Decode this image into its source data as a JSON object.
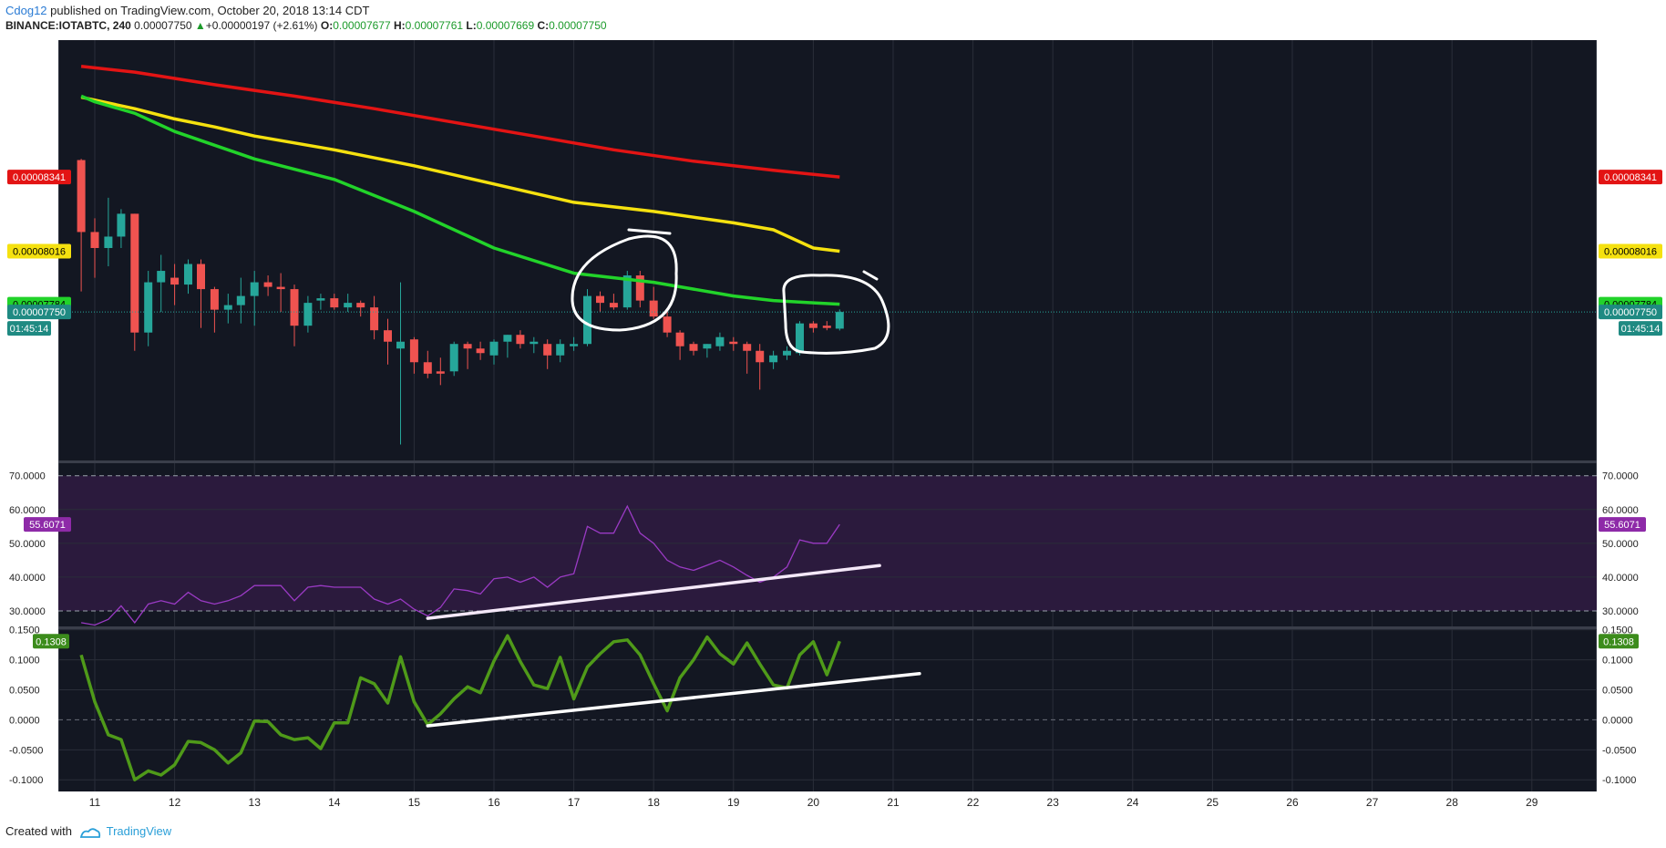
{
  "header": {
    "author": "Cdog12",
    "published_text": " published on TradingView.com, October 20, 2018 13:14 CDT",
    "symbol": "BINANCE:IOTABTC, 240",
    "last": "0.00007750",
    "change": "+0.00000197 (+2.61%)",
    "o_label": "O:",
    "o": "0.00007677",
    "h_label": "H:",
    "h": "0.00007761",
    "l_label": "L:",
    "l": "0.00007669",
    "c_label": "C:",
    "c": "0.00007750"
  },
  "footer": {
    "created_with": "Created with",
    "brand": "TradingView"
  },
  "colors": {
    "background": "#131722",
    "grid": "#2a2e39",
    "up": "#26a69a",
    "down": "#ef5350",
    "ma_red": "#e31414",
    "ma_yellow": "#f5e10f",
    "ma_green": "#22d32a",
    "rsi_line": "#9a3ac4",
    "rsi_band": "#2b1a3d",
    "osc_line": "#4f9a19",
    "badge_green": "#3c8c1c",
    "badge_purple": "#8e2aa8",
    "badge_teal": "#1f8a82"
  },
  "chart_data": [
    {
      "type": "candlestick",
      "title": "BINANCE:IOTABTC, 240",
      "x_ticks": [
        "11",
        "12",
        "13",
        "14",
        "15",
        "16",
        "17",
        "18",
        "19",
        "20",
        "21",
        "22",
        "23",
        "24",
        "25",
        "26",
        "27",
        "28",
        "29"
      ],
      "ylim": [
        7.1e-05,
        8.94e-05
      ],
      "y_ticks": [
        "0.00007200",
        "0.00007400",
        "0.00007600",
        "0.00008200",
        "0.00008400",
        "0.00008600",
        "0.00008800"
      ],
      "candles": [
        {
          "t": 10.83,
          "o": 84.15,
          "h": 84.2,
          "l": 78.4,
          "c": 81.0
        },
        {
          "t": 11.0,
          "o": 81.0,
          "h": 81.6,
          "l": 79.0,
          "c": 80.3
        },
        {
          "t": 11.17,
          "o": 80.3,
          "h": 82.5,
          "l": 79.5,
          "c": 80.8
        },
        {
          "t": 11.33,
          "o": 80.8,
          "h": 82.0,
          "l": 80.3,
          "c": 81.8
        },
        {
          "t": 11.5,
          "o": 81.8,
          "h": 81.8,
          "l": 75.8,
          "c": 76.6
        },
        {
          "t": 11.67,
          "o": 76.6,
          "h": 79.3,
          "l": 76.0,
          "c": 78.8
        },
        {
          "t": 11.83,
          "o": 78.8,
          "h": 80.0,
          "l": 77.5,
          "c": 79.3
        },
        {
          "t": 12.0,
          "o": 79.0,
          "h": 79.6,
          "l": 77.8,
          "c": 78.7
        },
        {
          "t": 12.17,
          "o": 78.7,
          "h": 79.8,
          "l": 78.3,
          "c": 79.6
        },
        {
          "t": 12.33,
          "o": 79.6,
          "h": 79.8,
          "l": 76.8,
          "c": 78.5
        },
        {
          "t": 12.5,
          "o": 78.5,
          "h": 78.6,
          "l": 76.6,
          "c": 77.6
        },
        {
          "t": 12.67,
          "o": 77.6,
          "h": 78.3,
          "l": 77.0,
          "c": 77.8
        },
        {
          "t": 12.83,
          "o": 77.8,
          "h": 79.0,
          "l": 77.0,
          "c": 78.2
        },
        {
          "t": 13.0,
          "o": 78.2,
          "h": 79.3,
          "l": 76.9,
          "c": 78.8
        },
        {
          "t": 13.17,
          "o": 78.8,
          "h": 79.1,
          "l": 78.2,
          "c": 78.6
        },
        {
          "t": 13.33,
          "o": 78.6,
          "h": 79.2,
          "l": 77.5,
          "c": 78.5
        },
        {
          "t": 13.5,
          "o": 78.5,
          "h": 78.7,
          "l": 76.0,
          "c": 76.9
        },
        {
          "t": 13.67,
          "o": 76.9,
          "h": 78.2,
          "l": 76.6,
          "c": 77.9
        },
        {
          "t": 13.83,
          "o": 78.0,
          "h": 78.3,
          "l": 77.6,
          "c": 78.1
        },
        {
          "t": 14.0,
          "o": 78.1,
          "h": 78.3,
          "l": 77.6,
          "c": 77.7
        },
        {
          "t": 14.17,
          "o": 77.7,
          "h": 78.3,
          "l": 77.5,
          "c": 77.9
        },
        {
          "t": 14.33,
          "o": 77.9,
          "h": 78.0,
          "l": 77.3,
          "c": 77.7
        },
        {
          "t": 14.5,
          "o": 77.7,
          "h": 78.2,
          "l": 76.3,
          "c": 76.7
        },
        {
          "t": 14.67,
          "o": 76.7,
          "h": 77.2,
          "l": 75.2,
          "c": 76.2
        },
        {
          "t": 14.83,
          "o": 75.9,
          "h": 78.8,
          "l": 71.7,
          "c": 76.2
        },
        {
          "t": 15.0,
          "o": 76.3,
          "h": 76.4,
          "l": 74.8,
          "c": 75.3
        },
        {
          "t": 15.17,
          "o": 75.3,
          "h": 75.8,
          "l": 74.6,
          "c": 74.8
        },
        {
          "t": 15.33,
          "o": 74.9,
          "h": 75.5,
          "l": 74.3,
          "c": 74.8
        },
        {
          "t": 15.5,
          "o": 74.9,
          "h": 76.2,
          "l": 74.7,
          "c": 76.1
        },
        {
          "t": 15.67,
          "o": 76.1,
          "h": 76.2,
          "l": 75.0,
          "c": 75.9
        },
        {
          "t": 15.83,
          "o": 75.9,
          "h": 76.2,
          "l": 75.4,
          "c": 75.7
        },
        {
          "t": 16.0,
          "o": 75.6,
          "h": 76.3,
          "l": 75.2,
          "c": 76.2
        },
        {
          "t": 16.17,
          "o": 76.2,
          "h": 76.5,
          "l": 75.5,
          "c": 76.5
        },
        {
          "t": 16.33,
          "o": 76.5,
          "h": 76.7,
          "l": 75.9,
          "c": 76.1
        },
        {
          "t": 16.5,
          "o": 76.1,
          "h": 76.4,
          "l": 75.7,
          "c": 76.2
        },
        {
          "t": 16.67,
          "o": 76.1,
          "h": 76.3,
          "l": 75.0,
          "c": 75.6
        },
        {
          "t": 16.83,
          "o": 75.6,
          "h": 76.3,
          "l": 75.3,
          "c": 76.1
        },
        {
          "t": 17.0,
          "o": 76.0,
          "h": 76.4,
          "l": 75.8,
          "c": 76.1
        },
        {
          "t": 17.17,
          "o": 76.1,
          "h": 78.5,
          "l": 76.0,
          "c": 78.2
        },
        {
          "t": 17.33,
          "o": 78.2,
          "h": 78.4,
          "l": 77.5,
          "c": 77.9
        },
        {
          "t": 17.5,
          "o": 77.9,
          "h": 78.3,
          "l": 77.6,
          "c": 77.7
        },
        {
          "t": 17.67,
          "o": 77.7,
          "h": 79.3,
          "l": 77.6,
          "c": 79.1
        },
        {
          "t": 17.83,
          "o": 79.1,
          "h": 79.3,
          "l": 77.7,
          "c": 78.0
        },
        {
          "t": 18.0,
          "o": 78.0,
          "h": 78.6,
          "l": 77.2,
          "c": 77.3
        },
        {
          "t": 18.17,
          "o": 77.3,
          "h": 77.6,
          "l": 76.4,
          "c": 76.6
        },
        {
          "t": 18.33,
          "o": 76.6,
          "h": 76.7,
          "l": 75.4,
          "c": 76.0
        },
        {
          "t": 18.5,
          "o": 76.1,
          "h": 76.2,
          "l": 75.6,
          "c": 75.8
        },
        {
          "t": 18.67,
          "o": 75.9,
          "h": 76.1,
          "l": 75.5,
          "c": 76.1
        },
        {
          "t": 18.83,
          "o": 76.0,
          "h": 76.6,
          "l": 75.8,
          "c": 76.4
        },
        {
          "t": 19.0,
          "o": 76.2,
          "h": 76.4,
          "l": 75.8,
          "c": 76.1
        },
        {
          "t": 19.17,
          "o": 76.1,
          "h": 76.2,
          "l": 74.8,
          "c": 75.8
        },
        {
          "t": 19.33,
          "o": 75.8,
          "h": 76.1,
          "l": 74.1,
          "c": 75.3
        },
        {
          "t": 19.5,
          "o": 75.3,
          "h": 75.8,
          "l": 75.0,
          "c": 75.6
        },
        {
          "t": 19.67,
          "o": 75.6,
          "h": 76.0,
          "l": 75.4,
          "c": 75.8
        },
        {
          "t": 19.83,
          "o": 75.7,
          "h": 77.1,
          "l": 75.6,
          "c": 77.0
        },
        {
          "t": 20.0,
          "o": 77.0,
          "h": 77.1,
          "l": 76.6,
          "c": 76.8
        },
        {
          "t": 20.17,
          "o": 76.9,
          "h": 77.1,
          "l": 76.7,
          "c": 76.8
        },
        {
          "t": 20.33,
          "o": 76.77,
          "h": 77.61,
          "l": 76.69,
          "c": 77.5
        }
      ],
      "moving_averages": [
        {
          "color": "red",
          "points": [
            [
              10.83,
              88.25
            ],
            [
              11.5,
              88.0
            ],
            [
              12.5,
              87.45
            ],
            [
              13.5,
              86.95
            ],
            [
              14.5,
              86.4
            ],
            [
              15.5,
              85.8
            ],
            [
              16.5,
              85.2
            ],
            [
              17.5,
              84.6
            ],
            [
              18.5,
              84.1
            ],
            [
              19.5,
              83.7
            ],
            [
              20.33,
              83.41
            ]
          ]
        },
        {
          "color": "yellow",
          "points": [
            [
              10.83,
              86.9
            ],
            [
              11.5,
              86.4
            ],
            [
              12.0,
              85.95
            ],
            [
              12.5,
              85.6
            ],
            [
              13.0,
              85.2
            ],
            [
              14.0,
              84.6
            ],
            [
              15.0,
              83.9
            ],
            [
              16.0,
              83.1
            ],
            [
              17.0,
              82.3
            ],
            [
              17.5,
              82.1
            ],
            [
              18.0,
              81.9
            ],
            [
              18.5,
              81.65
            ],
            [
              19.0,
              81.4
            ],
            [
              19.5,
              81.1
            ],
            [
              20.0,
              80.3
            ],
            [
              20.33,
              80.16
            ]
          ]
        },
        {
          "color": "green",
          "points": [
            [
              10.83,
              86.95
            ],
            [
              11.0,
              86.7
            ],
            [
              11.5,
              86.2
            ],
            [
              12.0,
              85.4
            ],
            [
              13.0,
              84.2
            ],
            [
              14.0,
              83.3
            ],
            [
              15.0,
              81.9
            ],
            [
              16.0,
              80.3
            ],
            [
              17.0,
              79.2
            ],
            [
              17.5,
              79.0
            ],
            [
              18.0,
              78.8
            ],
            [
              19.0,
              78.2
            ],
            [
              19.5,
              78.0
            ],
            [
              20.0,
              77.9
            ],
            [
              20.33,
              77.84
            ]
          ]
        }
      ],
      "price_badges": {
        "ma_red": "0.00008341",
        "ma_yellow": "0.00008016",
        "ma_green": "0.00007784",
        "last": "0.00007750",
        "countdown": "01:45:14"
      }
    },
    {
      "type": "line",
      "title": "RSI",
      "ylim": [
        25.4,
        73.7
      ],
      "y_ticks": [
        "30.0000",
        "40.0000",
        "50.0000",
        "60.0000",
        "70.0000"
      ],
      "band": [
        30,
        70
      ],
      "x": [
        10.83,
        11.0,
        11.17,
        11.33,
        11.5,
        11.67,
        11.83,
        12.0,
        12.17,
        12.33,
        12.5,
        12.67,
        12.83,
        13.0,
        13.17,
        13.33,
        13.5,
        13.67,
        13.83,
        14.0,
        14.17,
        14.33,
        14.5,
        14.67,
        14.83,
        15.0,
        15.17,
        15.33,
        15.5,
        15.67,
        15.83,
        16.0,
        16.17,
        16.33,
        16.5,
        16.67,
        16.83,
        17.0,
        17.17,
        17.33,
        17.5,
        17.67,
        17.83,
        18.0,
        18.17,
        18.33,
        18.5,
        18.67,
        18.83,
        19.0,
        19.17,
        19.33,
        19.5,
        19.67,
        19.83,
        20.0,
        20.17,
        20.33
      ],
      "values": [
        26.5,
        25.8,
        27.5,
        31.5,
        26.5,
        32.0,
        33.0,
        32.0,
        35.5,
        33.0,
        32.0,
        33.0,
        34.5,
        37.5,
        37.5,
        37.5,
        33.0,
        37.0,
        37.5,
        37.0,
        37.0,
        37.0,
        33.5,
        32.0,
        33.5,
        30.5,
        28.5,
        31.0,
        36.5,
        36.0,
        35.0,
        39.5,
        40.0,
        38.5,
        40.0,
        37.0,
        40.0,
        41.0,
        55.0,
        53.0,
        53.0,
        61.0,
        53.0,
        50.0,
        45.0,
        43.0,
        42.0,
        43.5,
        45.0,
        43.0,
        40.5,
        38.5,
        40.0,
        43.0,
        51.0,
        50.0,
        50.0,
        55.6
      ],
      "last_label": "55.6071"
    },
    {
      "type": "line",
      "title": "Oscillator",
      "ylim": [
        -0.1,
        0.15
      ],
      "y_ticks": [
        "-0.1000",
        "-0.0500",
        "0.0000",
        "0.0500",
        "0.1000",
        "0.1500"
      ],
      "x": [
        10.83,
        11.0,
        11.17,
        11.33,
        11.5,
        11.67,
        11.83,
        12.0,
        12.17,
        12.33,
        12.5,
        12.67,
        12.83,
        13.0,
        13.17,
        13.33,
        13.5,
        13.67,
        13.83,
        14.0,
        14.17,
        14.33,
        14.5,
        14.67,
        14.83,
        15.0,
        15.17,
        15.33,
        15.5,
        15.67,
        15.83,
        16.0,
        16.17,
        16.33,
        16.5,
        16.67,
        16.83,
        17.0,
        17.17,
        17.33,
        17.5,
        17.67,
        17.83,
        18.0,
        18.17,
        18.33,
        18.5,
        18.67,
        18.83,
        19.0,
        19.17,
        19.33,
        19.5,
        19.67,
        19.83,
        20.0,
        20.17,
        20.33
      ],
      "values": [
        0.108,
        0.03,
        -0.025,
        -0.033,
        -0.1,
        -0.085,
        -0.092,
        -0.075,
        -0.036,
        -0.038,
        -0.05,
        -0.072,
        -0.055,
        -0.002,
        -0.003,
        -0.025,
        -0.033,
        -0.03,
        -0.048,
        -0.005,
        -0.005,
        0.07,
        0.06,
        0.028,
        0.105,
        0.03,
        -0.008,
        0.01,
        0.035,
        0.055,
        0.045,
        0.098,
        0.14,
        0.097,
        0.058,
        0.052,
        0.104,
        0.035,
        0.088,
        0.11,
        0.13,
        0.133,
        0.108,
        0.06,
        0.015,
        0.07,
        0.1,
        0.138,
        0.11,
        0.093,
        0.128,
        0.093,
        0.058,
        0.053,
        0.108,
        0.13,
        0.075,
        0.1308
      ],
      "last_label": "0.1308"
    }
  ],
  "annotations": {
    "rsi_trendline": [
      [
        15.17,
        27.8
      ],
      [
        20.83,
        43.4
      ]
    ],
    "osc_trendline": [
      [
        15.17,
        -0.01
      ],
      [
        21.33,
        0.077
      ]
    ]
  }
}
